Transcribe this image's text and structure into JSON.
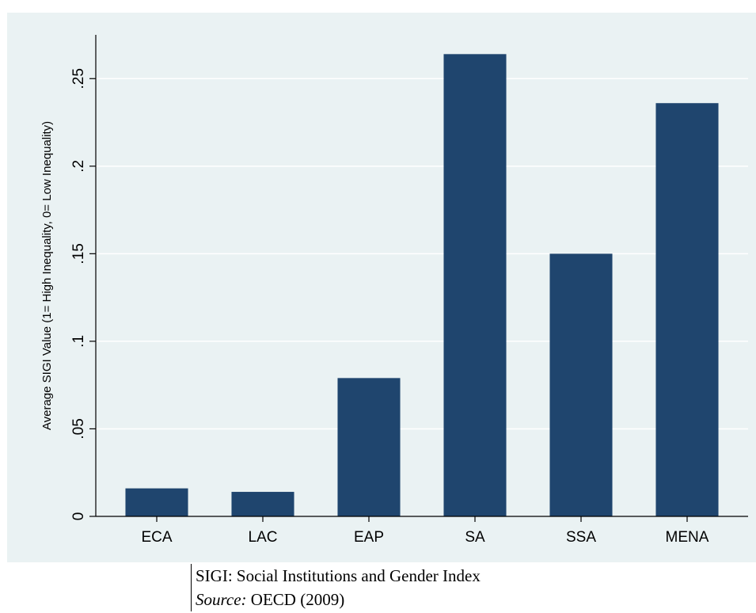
{
  "chart_data": {
    "type": "bar",
    "categories": [
      "ECA",
      "LAC",
      "EAP",
      "SA",
      "SSA",
      "MENA"
    ],
    "values": [
      0.016,
      0.014,
      0.079,
      0.264,
      0.15,
      0.236
    ],
    "title": "",
    "xlabel": "",
    "ylabel": "Average SIGI Value (1= High Inequality, 0= Low Inequality)",
    "ylim": [
      0,
      0.275
    ],
    "yticks": [
      0,
      0.05,
      0.1,
      0.15,
      0.2,
      0.25
    ],
    "ytick_labels": [
      "0",
      ".05",
      ".1",
      ".15",
      ".2",
      ".25"
    ],
    "grid": true,
    "bar_color": "#1f456e",
    "background_color": "#eaf2f3",
    "grid_color": "#ffffff"
  },
  "notes": {
    "line1": "SIGI: Social Institutions and Gender Index",
    "source_prefix": "Source:",
    "source_text": " OECD (2009)"
  }
}
